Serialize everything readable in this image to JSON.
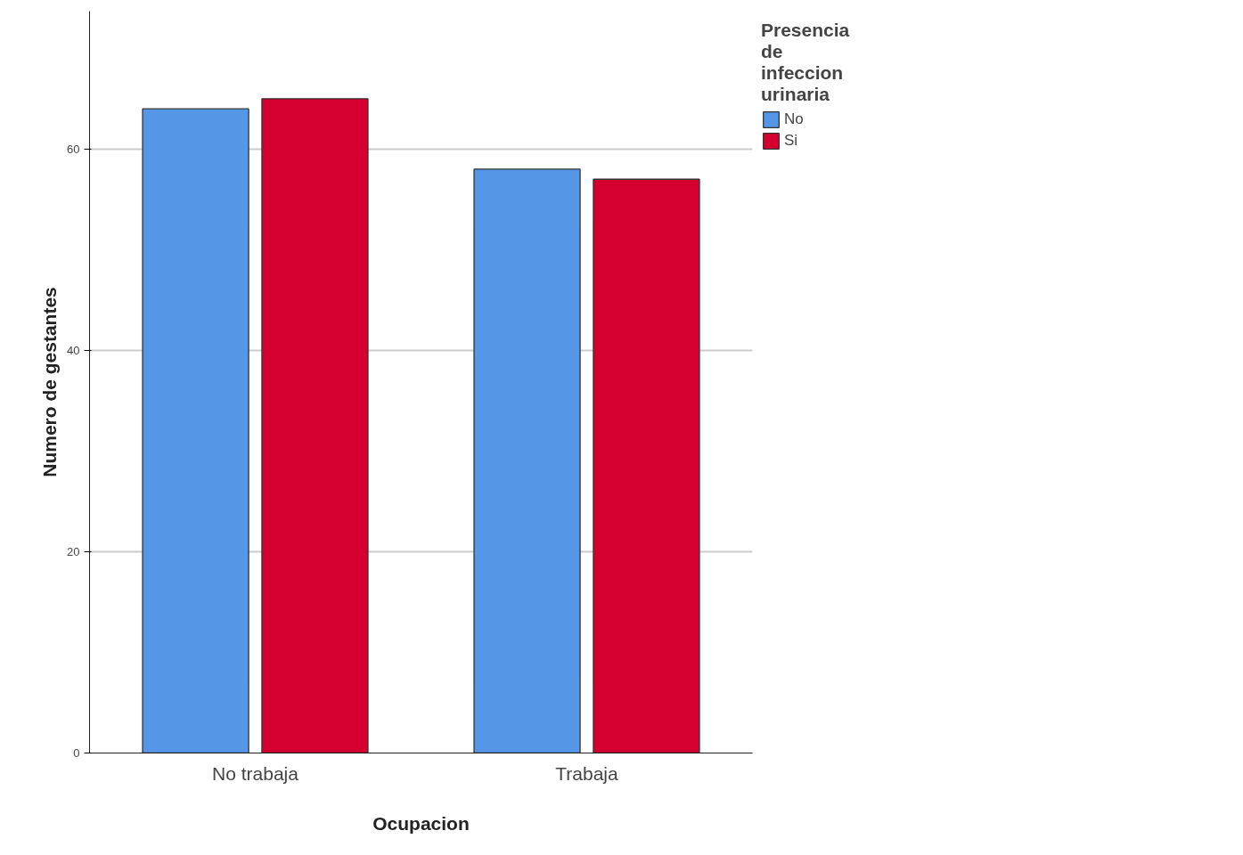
{
  "chart_data": {
    "type": "bar",
    "xlabel": "Ocupacion",
    "ylabel": "Numero de gestantes",
    "legend_title": "Presencia de infeccion urinaria",
    "categories": [
      "No trabaja",
      "Trabaja"
    ],
    "series": [
      {
        "name": "No",
        "color": "#5596e6",
        "values": [
          64,
          58
        ]
      },
      {
        "name": "Si",
        "color": "#d5002e",
        "values": [
          65,
          57
        ]
      }
    ],
    "ylim": [
      0,
      73.7
    ],
    "yticks": [
      0,
      20,
      40,
      60
    ],
    "grid": "y",
    "legend": "top right"
  }
}
